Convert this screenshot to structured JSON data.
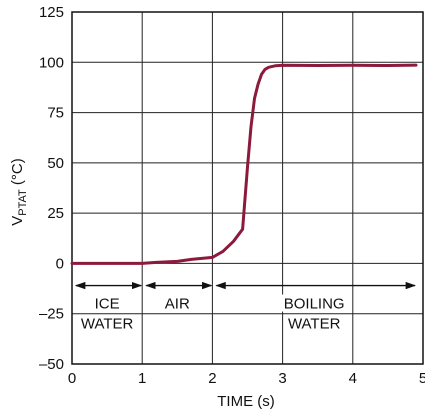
{
  "chart_data": {
    "type": "line",
    "xlabel": "TIME (s)",
    "ylabel": {
      "main": "V",
      "sub": "PTAT",
      "unit": " (°C)"
    },
    "xlim": [
      0,
      5
    ],
    "ylim": [
      -50,
      125
    ],
    "xticks": [
      "0",
      "1",
      "2",
      "3",
      "4",
      "5"
    ],
    "yticks": [
      "125",
      "100",
      "75",
      "50",
      "25",
      "0",
      "–25",
      "–50"
    ],
    "grid": true,
    "series": [
      {
        "color": "#8b1a3c",
        "x": [
          0,
          0.5,
          1.0,
          1.2,
          1.5,
          1.7,
          2.0,
          2.15,
          2.3,
          2.43,
          2.5,
          2.55,
          2.6,
          2.65,
          2.7,
          2.75,
          2.8,
          2.9,
          3.0,
          3.5,
          4.0,
          4.5,
          4.9
        ],
        "y": [
          0,
          0,
          0,
          0.5,
          1,
          2,
          3,
          6,
          11,
          17,
          48,
          68,
          82,
          89,
          94,
          96.5,
          97.5,
          98.3,
          98.5,
          98.4,
          98.5,
          98.4,
          98.6
        ]
      }
    ],
    "annotations": {
      "regions": [
        {
          "lines": [
            "ICE",
            "WATER"
          ],
          "from": 0,
          "to": 1
        },
        {
          "lines": [
            "AIR"
          ],
          "from": 1,
          "to": 2
        },
        {
          "lines": [
            "BOILING",
            "WATER"
          ],
          "from": 2,
          "to": 4.9
        }
      ]
    }
  }
}
